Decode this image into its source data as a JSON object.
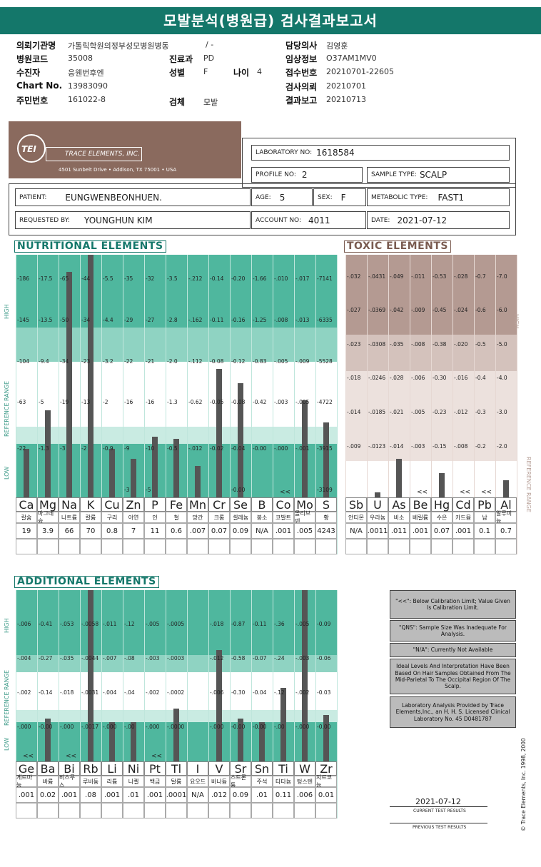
{
  "title": "모발분석(병원급) 검사결과보고서",
  "header": {
    "left": [
      [
        "의뢰기관명",
        "가톨릭학원의정부성모병원병동"
      ],
      [
        "병원코드",
        "35008"
      ],
      [
        "수진자",
        "응웬번후엔"
      ],
      [
        "Chart No.",
        "13983090"
      ],
      [
        "주민번호",
        "161022-8"
      ]
    ],
    "mid": [
      [
        "",
        "/ -"
      ],
      [
        "진료과",
        "PD"
      ],
      [
        "성별",
        "F"
      ],
      [
        "검체",
        "모발"
      ]
    ],
    "age_label": "나이",
    "age_value": "4",
    "right": [
      [
        "담당의사",
        "김영훈"
      ],
      [
        "임상정보",
        "O37AM1MV0"
      ],
      [
        "접수번호",
        "20210701-22605"
      ],
      [
        "검사의뢰",
        "20210701"
      ],
      [
        "결과보고",
        "20210713"
      ]
    ]
  },
  "lab": {
    "name": "TRACE ELEMENTS, INC.",
    "tei": "TEI",
    "address": "4501 Sunbelt Drive  •  Addison, TX 75001  •  USA",
    "lab_no_label": "LABORATORY NO:",
    "lab_no": "1618584",
    "profile_label": "PROFILE NO:",
    "profile": "2",
    "sample_label": "SAMPLE TYPE:",
    "sample": "SCALP",
    "patient_label": "PATIENT:",
    "patient": "EUNGWENBEONHUEN.",
    "age_label": "AGE:",
    "age": "5",
    "sex_label": "SEX:",
    "sex": "F",
    "meta_label": "METABOLIC TYPE:",
    "meta": "FAST1",
    "req_label": "REQUESTED BY:",
    "req": "YOUNGHUN KIM",
    "acct_label": "ACCOUNT NO:",
    "acct": "4011",
    "date_label": "DATE:",
    "date": "2021-07-12"
  },
  "labels": {
    "high": "HIGH",
    "low": "LOW",
    "ref": "REFERENCE RANGE",
    "ref2": "REFERENCE RANGE",
    "high2": "HIGH"
  },
  "chart_data": [
    {
      "title": "NUTRITIONAL ELEMENTS",
      "type": "bar",
      "categories": [
        "Ca",
        "Mg",
        "Na",
        "K",
        "Cu",
        "Zn",
        "P",
        "Fe",
        "Mn",
        "Cr",
        "Se",
        "B",
        "Co",
        "Mo",
        "S"
      ],
      "korean": [
        "칼슘",
        "마그네슘",
        "나트륨",
        "칼륨",
        "구리",
        "아연",
        "인",
        "철",
        "망간",
        "크롬",
        "셀레늄",
        "붕소",
        "코발트",
        "몰리브덴",
        "황"
      ],
      "results": [
        "19",
        "3.9",
        "66",
        "70",
        "0.8",
        "7",
        "11",
        "0.6",
        ".007",
        "0.07",
        "0.09",
        "N/A",
        ".001",
        ".005",
        "4243"
      ],
      "level_fraction": [
        0.2,
        0.36,
        0.93,
        1.0,
        0.2,
        0.16,
        0.25,
        0.24,
        0.13,
        0.53,
        0.47,
        0,
        0,
        0.4,
        0.31
      ],
      "ticks": [
        [
          "186",
          "145",
          "104",
          "63",
          "22"
        ],
        [
          "17.5",
          "13.5",
          "9.4",
          "5",
          "1.3"
        ],
        [
          "65",
          "50",
          "34",
          "19",
          "3"
        ],
        [
          "44",
          "34",
          "23",
          "13",
          "2"
        ],
        [
          "5.5",
          "4.4",
          "3.2",
          "2",
          "0.9"
        ],
        [
          "35",
          "29",
          "22",
          "16",
          "9",
          "3"
        ],
        [
          "32",
          "27",
          "21",
          "16",
          "10",
          "5"
        ],
        [
          "3.5",
          "2.8",
          "2.0",
          "1.3",
          "0.5"
        ],
        [
          ".212",
          ".162",
          ".112",
          "0.62",
          ".012"
        ],
        [
          "0.14",
          "0.11",
          "0.08",
          "0.05",
          "0.02"
        ],
        [
          "0.20",
          "0.16",
          "0.12",
          "0.08",
          "0.04",
          "0.00"
        ],
        [
          "1.66",
          "1.25",
          "0.83",
          "0.42",
          "0.00"
        ],
        [
          ".010",
          ".008",
          ".005",
          ".003",
          ".000"
        ],
        [
          ".017",
          ".013",
          ".009",
          ".005",
          ".001"
        ],
        [
          "7141",
          "6335",
          "5528",
          "4722",
          "3915",
          "3109"
        ]
      ],
      "below_marks": {
        "Co": "<<"
      }
    },
    {
      "title": "TOXIC ELEMENTS",
      "type": "bar",
      "categories": [
        "Sb",
        "U",
        "As",
        "Be",
        "Hg",
        "Cd",
        "Pb",
        "Al"
      ],
      "korean": [
        "안티몬",
        "우라늄",
        "비소",
        "베릴륨",
        "수은",
        "카드뮴",
        "납",
        "알루미늄"
      ],
      "results": [
        "N/A",
        ".0011",
        ".011",
        ".001",
        "0.07",
        ".001",
        "0.1",
        "0.7"
      ],
      "level_fraction": [
        0,
        0.02,
        0.16,
        0,
        0.1,
        0,
        0,
        0.07
      ],
      "ticks": [
        [
          ".032",
          ".027",
          ".023",
          ".018",
          ".014",
          ".009"
        ],
        [
          ".0431",
          ".0369",
          ".0308",
          ".0246",
          ".0185",
          ".0123"
        ],
        [
          ".049",
          ".042",
          ".035",
          ".028",
          ".021",
          ".014"
        ],
        [
          ".011",
          ".009",
          ".008",
          ".006",
          ".005",
          ".003"
        ],
        [
          "0.53",
          "0.45",
          "0.38",
          "0.30",
          "0.23",
          "0.15"
        ],
        [
          ".028",
          ".024",
          ".020",
          ".016",
          ".012",
          ".008"
        ],
        [
          "0.7",
          "0.6",
          "0.5",
          "0.4",
          "0.3",
          "0.2"
        ],
        [
          "7.0",
          "6.0",
          "5.0",
          "4.0",
          "3.0",
          "2.0"
        ]
      ],
      "below_marks": {
        "Be": "<<",
        "Cd": "<<",
        "Pb": "<<"
      }
    },
    {
      "title": "ADDITIONAL ELEMENTS",
      "type": "bar",
      "categories": [
        "Ge",
        "Ba",
        "Bi",
        "Rb",
        "Li",
        "Ni",
        "Pt",
        "Tl",
        "I",
        "V",
        "Sr",
        "Sn",
        "Ti",
        "W",
        "Zr"
      ],
      "korean": [
        "게르마늄",
        "바륨",
        "비스무스",
        "루비듐",
        "리튬",
        "니켈",
        "백금",
        "탈륨",
        "요오드",
        "바나듐",
        "스트론튬",
        "주석",
        "타타늄",
        "텅스텐",
        "지르코늄"
      ],
      "results": [
        ".001",
        "0.02",
        ".001",
        ".08",
        ".001",
        ".01",
        ".001",
        ".0001",
        "N/A",
        ".012",
        "0.09",
        ".01",
        "0.11",
        ".006",
        "0.01"
      ],
      "level_fraction": [
        0,
        0.25,
        0,
        1.0,
        0.23,
        0.23,
        0,
        0.31,
        0,
        0.65,
        0.25,
        0.23,
        0.43,
        1.0,
        0.27
      ],
      "ticks": [
        [
          ".006",
          ".004",
          ".002",
          ".000"
        ],
        [
          "0.41",
          "0.27",
          "0.14",
          "0.00"
        ],
        [
          ".053",
          ".035",
          ".018",
          ".000"
        ],
        [
          ".0058",
          ".0044",
          ".0031",
          ".0017"
        ],
        [
          ".011",
          ".007",
          ".004",
          ".000"
        ],
        [
          ".12",
          ".08",
          ".04",
          ".00"
        ],
        [
          ".005",
          ".003",
          ".002",
          ".000"
        ],
        [
          ".0005",
          ".0003",
          ".0002",
          ".0000"
        ],
        [
          "",
          "",
          "",
          ""
        ],
        [
          ".018",
          ".012",
          ".006",
          ".000"
        ],
        [
          "0.87",
          "0.58",
          "0.30",
          "0.00"
        ],
        [
          "0.11",
          "0.07",
          "0.04",
          "0.00"
        ],
        [
          ".36",
          ".24",
          ".12",
          ".00"
        ],
        [
          ".005",
          ".003",
          ".002",
          ".000"
        ],
        [
          "0.09",
          "0.06",
          "0.03",
          "0.00"
        ]
      ],
      "below_marks": {
        "Ge": "<<",
        "Bi": "<<",
        "Pt": "<<"
      }
    }
  ],
  "notes": [
    "\"<<\": Below Calibration Limit; Value Given Is Calibration Limit.",
    "\"QNS\": Sample Size Was Inadequate For Analysis.",
    "\"N/A\": Currently Not Available",
    "Ideal Levels And Interpretation Have Been Based On Hair Samples Obtained From The Mid-Parietal To The Occipital Region Of The Scalp.",
    "Laboratory Analysis Provided by Trace Elements,Inc., an H. H. S. Licensed Clinical Laboratory No. 45 D0481787"
  ],
  "footer": {
    "current_date": "2021-07-12",
    "current_label": "CURRENT TEST RESULTS",
    "previous_label": "PREVIOUS TEST RESULTS",
    "copyright": "© Trace Elements, Inc. 1998, 2000"
  },
  "colors": {
    "teal": "#14776a",
    "green_dark": "#4fb79e",
    "green_mid": "#8fd3c2",
    "green_light": "#c9ebe2",
    "brown": "#8a6a5e",
    "toxic_dark": "#b49a92",
    "toxic_mid": "#d4c2bc",
    "toxic_light": "#ece1dd"
  }
}
